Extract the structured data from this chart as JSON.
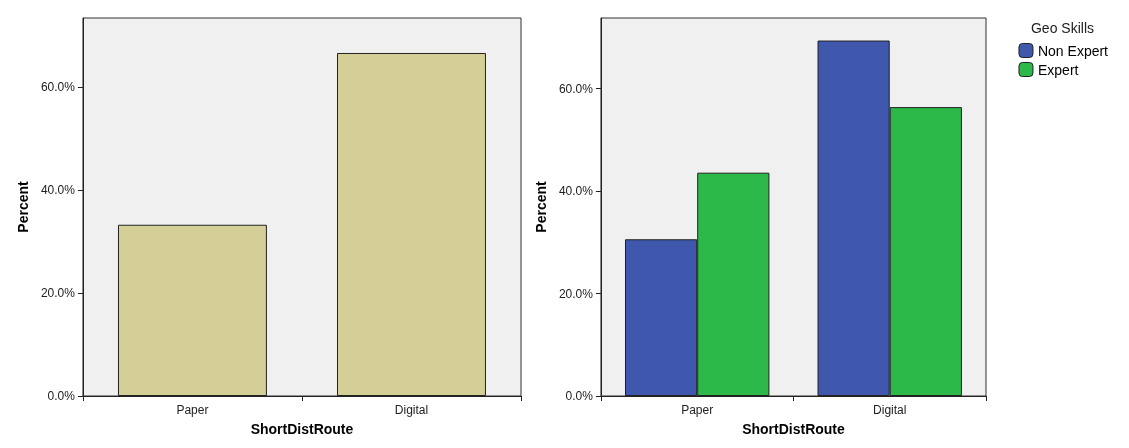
{
  "chart_data": [
    {
      "type": "bar",
      "categories": [
        "Paper",
        "Digital"
      ],
      "values": [
        33.3,
        66.7
      ],
      "color": "#d3cf97",
      "xlabel": "ShortDistRoute",
      "ylabel": "Percent",
      "ylim": [
        0,
        73.5
      ],
      "yticks": [
        {
          "value": 0,
          "label": "0.0%"
        },
        {
          "value": 20,
          "label": "20.0%"
        },
        {
          "value": 40,
          "label": "40.0%"
        },
        {
          "value": 60,
          "label": "60.0%"
        }
      ],
      "grid": false,
      "legend": false
    },
    {
      "type": "bar",
      "categories": [
        "Paper",
        "Digital"
      ],
      "series": [
        {
          "name": "Non Expert",
          "color": "#3f57ad",
          "values": [
            30.6,
            69.4
          ]
        },
        {
          "name": "Expert",
          "color": "#2db84a",
          "values": [
            43.6,
            56.4
          ]
        }
      ],
      "xlabel": "ShortDistRoute",
      "ylabel": "Percent",
      "legend_title": "Geo Skills",
      "legend": "top right",
      "ylim": [
        0,
        73.8
      ],
      "yticks": [
        {
          "value": 0,
          "label": "0.0%"
        },
        {
          "value": 20,
          "label": "20.0%"
        },
        {
          "value": 40,
          "label": "40.0%"
        },
        {
          "value": 60,
          "label": "60.0%"
        }
      ],
      "grid": false
    }
  ]
}
